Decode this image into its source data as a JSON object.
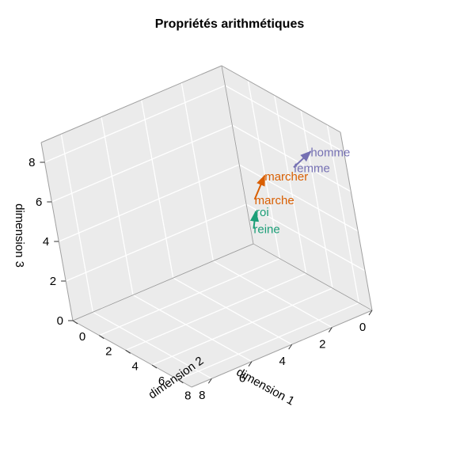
{
  "chart_data": {
    "type": "scatter3d-arrows",
    "title": "Propriétés arithmétiques",
    "axes": {
      "x": {
        "label": "dimension 1",
        "range": [
          0,
          9
        ],
        "ticks": [
          0,
          2,
          4,
          6,
          8
        ]
      },
      "y": {
        "label": "dimension 2",
        "range": [
          0,
          9
        ],
        "ticks": [
          0,
          2,
          4,
          6,
          8
        ]
      },
      "z": {
        "label": "dimension 3",
        "range": [
          0,
          9
        ],
        "ticks": [
          0,
          2,
          4,
          6,
          8
        ]
      }
    },
    "grid": true,
    "arrows": [
      {
        "from": {
          "label": "reine",
          "x": 0.3,
          "y": 0.8,
          "z": 1.2
        },
        "to": {
          "label": "roi",
          "x": 1.0,
          "y": 2.5,
          "z": 3.0
        },
        "color": "#1b9e77"
      },
      {
        "from": {
          "label": "marche",
          "x": 1.5,
          "y": 3.5,
          "z": 4.2
        },
        "to": {
          "label": "marcher",
          "x": 2.0,
          "y": 5.6,
          "z": 6.4
        },
        "color": "#d95f02"
      },
      {
        "from": {
          "label": "femme",
          "x": 1.3,
          "y": 6.9,
          "z": 7.0
        },
        "to": {
          "label": "homme",
          "x": 1.1,
          "y": 8.2,
          "z": 8.2
        },
        "color": "#7570b3"
      }
    ]
  }
}
